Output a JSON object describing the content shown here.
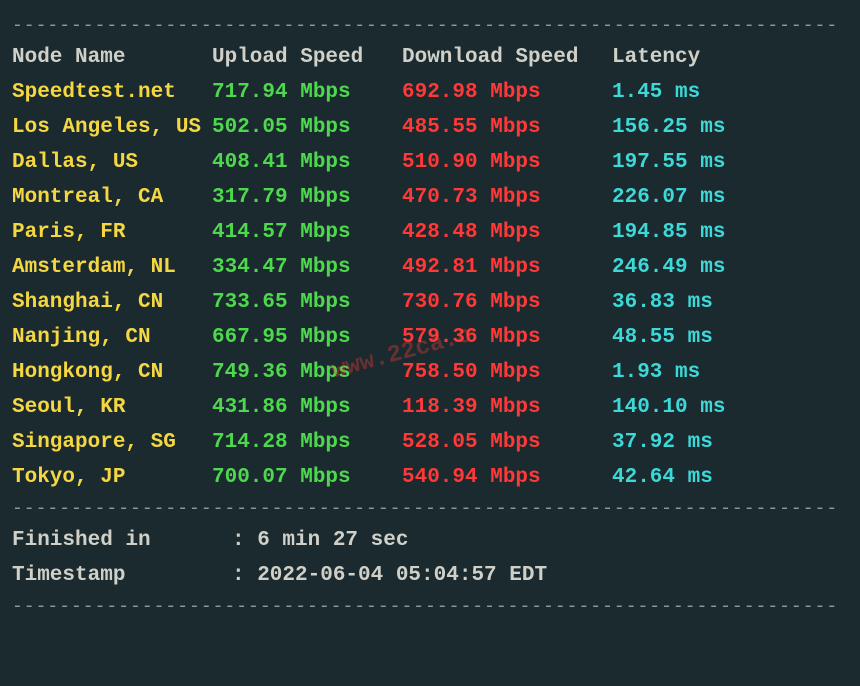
{
  "colors": {
    "background": "#1a2a2e",
    "divider": "#8a9a9e",
    "header_text": "#d0d0c8",
    "node_name": "#f5d742",
    "upload": "#4dd84d",
    "download": "#ff3838",
    "latency": "#3dd8d8",
    "footer_text": "#d0d0c8"
  },
  "divider_line": "----------------------------------------------------------------------",
  "headers": {
    "node": "Node Name",
    "upload": "Upload Speed",
    "download": "Download Speed",
    "latency": "Latency"
  },
  "rows": [
    {
      "node": "Speedtest.net",
      "upload": "717.94 Mbps",
      "download": "692.98 Mbps",
      "latency": "1.45 ms"
    },
    {
      "node": "Los Angeles, US",
      "upload": "502.05 Mbps",
      "download": "485.55 Mbps",
      "latency": "156.25 ms"
    },
    {
      "node": "Dallas, US",
      "upload": "408.41 Mbps",
      "download": "510.90 Mbps",
      "latency": "197.55 ms"
    },
    {
      "node": "Montreal, CA",
      "upload": "317.79 Mbps",
      "download": "470.73 Mbps",
      "latency": "226.07 ms"
    },
    {
      "node": "Paris, FR",
      "upload": "414.57 Mbps",
      "download": "428.48 Mbps",
      "latency": "194.85 ms"
    },
    {
      "node": "Amsterdam, NL",
      "upload": "334.47 Mbps",
      "download": "492.81 Mbps",
      "latency": "246.49 ms"
    },
    {
      "node": "Shanghai, CN",
      "upload": "733.65 Mbps",
      "download": "730.76 Mbps",
      "latency": "36.83 ms"
    },
    {
      "node": "Nanjing, CN",
      "upload": "667.95 Mbps",
      "download": "579.36 Mbps",
      "latency": "48.55 ms"
    },
    {
      "node": "Hongkong, CN",
      "upload": "749.36 Mbps",
      "download": "758.50 Mbps",
      "latency": "1.93 ms"
    },
    {
      "node": "Seoul, KR",
      "upload": "431.86 Mbps",
      "download": "118.39 Mbps",
      "latency": "140.10 ms"
    },
    {
      "node": "Singapore, SG",
      "upload": "714.28 Mbps",
      "download": "528.05 Mbps",
      "latency": "37.92 ms"
    },
    {
      "node": "Tokyo, JP",
      "upload": "700.07 Mbps",
      "download": "540.94 Mbps",
      "latency": "42.64 ms"
    }
  ],
  "footer": {
    "finished_label": "Finished in",
    "finished_value": ": 6 min 27 sec",
    "timestamp_label": "Timestamp",
    "timestamp_value": ": 2022-06-04 05:04:57 EDT"
  },
  "watermark": "www.22ca.c"
}
